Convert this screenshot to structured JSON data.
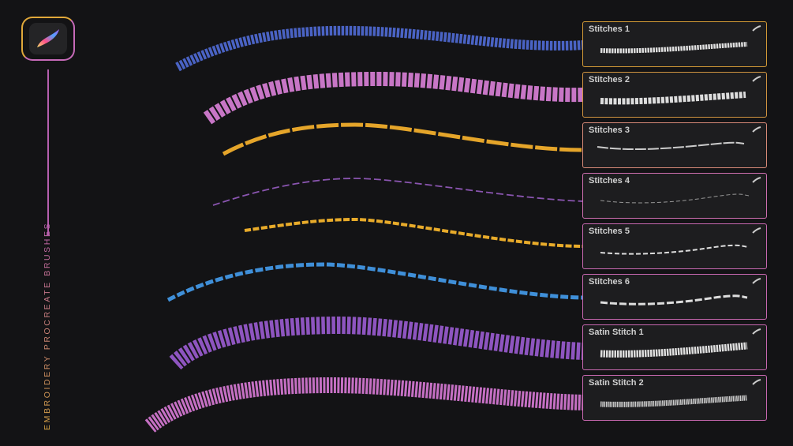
{
  "title": "EMBROIDERY PROCREATE BRUSHES",
  "logo": "procreate-logo",
  "colors": {
    "gold": "#e0a83a",
    "pink": "#c66ab8",
    "background": "#131315"
  },
  "brushes": [
    {
      "name": "Stitches 1",
      "color": "#4a63c4"
    },
    {
      "name": "Stitches 2",
      "color": "#c876c6"
    },
    {
      "name": "Stitches 3",
      "color": "#e5a52a"
    },
    {
      "name": "Stitches 4",
      "color": "#8a55b0"
    },
    {
      "name": "Stitches 5",
      "color": "#e8ab2a"
    },
    {
      "name": "Stitches 6",
      "color": "#3f8fd8"
    },
    {
      "name": "Satin Stitch 1",
      "color": "#8e55c0"
    },
    {
      "name": "Satin Stitch 2",
      "color": "#c670c4"
    }
  ]
}
